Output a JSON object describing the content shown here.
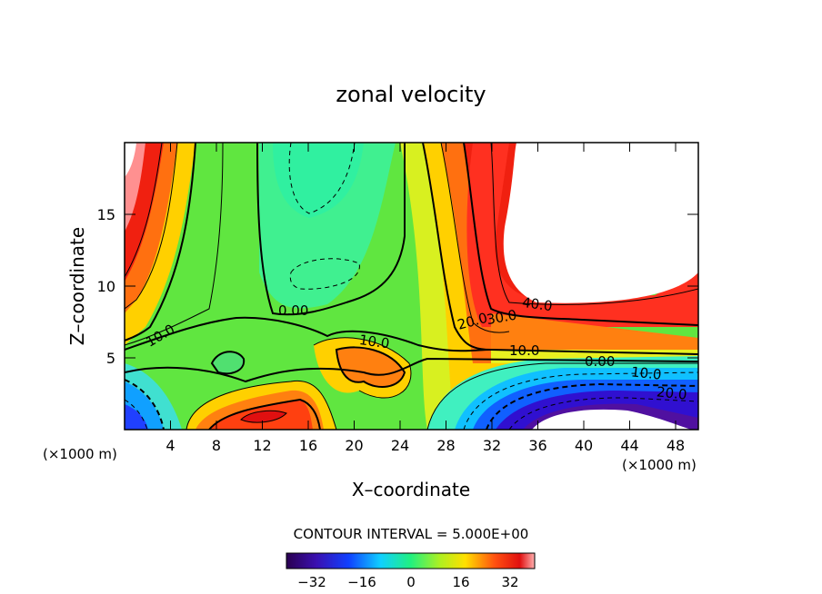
{
  "chart_data": {
    "type": "heatmap",
    "title": "zonal velocity",
    "xlabel": "X–coordinate",
    "ylabel": "Z–coordinate",
    "x_unit": "(×1000 m)",
    "z_unit": "(×1000 m)",
    "xlim": [
      0,
      50
    ],
    "ylim": [
      0,
      20
    ],
    "x_ticks": [
      "4",
      "8",
      "12",
      "16",
      "20",
      "24",
      "28",
      "32",
      "36",
      "40",
      "44",
      "48"
    ],
    "y_ticks": [
      "5",
      "10",
      "15"
    ],
    "contour_interval_label": "CONTOUR INTERVAL = 5.000E+00",
    "contour_labels": [
      "0.00",
      "10.0",
      "10.0",
      "20.0",
      "30.0",
      "40.0",
      "10.0",
      "0.00",
      "10.0",
      "20.0"
    ],
    "colorbar": {
      "ticks": [
        "−32",
        "−16",
        "0",
        "16",
        "32"
      ],
      "range": [
        -40,
        40
      ]
    },
    "note": "Color field: red/orange high values along left wall and around upper-right blank region, blue/purple low values at bottom-left and bottom-right; white regions mark values above color range."
  }
}
